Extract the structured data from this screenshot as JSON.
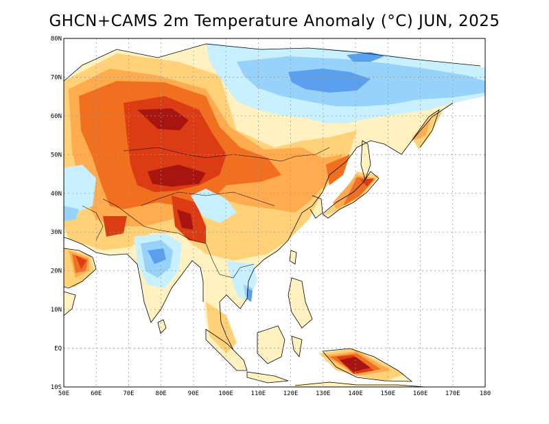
{
  "title": "GHCN+CAMS 2m Temperature Anomaly (°C) JUN, 2025",
  "axes": {
    "lat_labels": [
      "80N",
      "70N",
      "60N",
      "50N",
      "40N",
      "30N",
      "20N",
      "10N",
      "EQ",
      "10S"
    ],
    "lat_values": [
      80,
      70,
      60,
      50,
      40,
      30,
      20,
      10,
      0,
      -10
    ],
    "lon_labels": [
      "50E",
      "60E",
      "70E",
      "80E",
      "90E",
      "100E",
      "110E",
      "120E",
      "130E",
      "140E",
      "150E",
      "160E",
      "170E",
      "180"
    ],
    "lon_values": [
      50,
      60,
      70,
      80,
      90,
      100,
      110,
      120,
      130,
      140,
      150,
      160,
      170,
      180
    ]
  },
  "colors": {
    "land_neutral": "#fff2c0",
    "warm_1": "#ffd27a",
    "warm_2": "#ffab50",
    "warm_3": "#f07020",
    "warm_4": "#dc3c14",
    "warm_5": "#a81410",
    "cool_1": "#c8f0ff",
    "cool_2": "#96d2fa",
    "cool_3": "#5aa0ee",
    "ocean": "#ffffff",
    "grid": "#9a9a9a"
  },
  "chart_data": {
    "type": "heatmap",
    "title": "GHCN+CAMS 2m Temperature Anomaly (°C) JUN, 2025",
    "xlim": [
      50,
      180
    ],
    "ylim": [
      -10,
      80
    ],
    "grid": true
  }
}
